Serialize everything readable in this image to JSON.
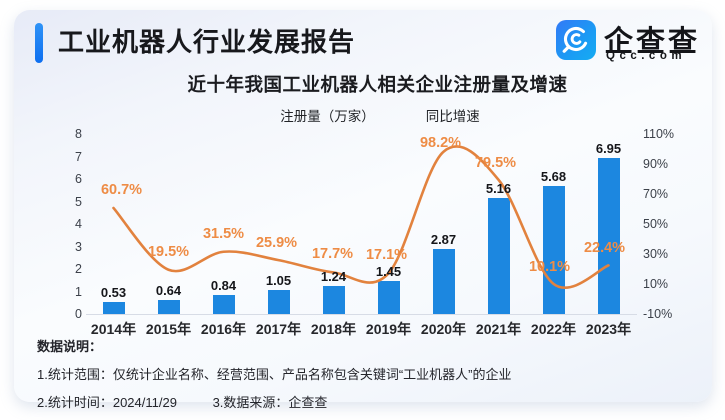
{
  "header": {
    "report_title": "工业机器人行业发展报告",
    "logo": {
      "brand": "企查查",
      "domain": "Qcc.com"
    }
  },
  "chart_data": {
    "type": "bar",
    "title": "近十年我国工业机器人相关企业注册量及增速",
    "categories": [
      "2014年",
      "2015年",
      "2016年",
      "2017年",
      "2018年",
      "2019年",
      "2020年",
      "2021年",
      "2022年",
      "2023年"
    ],
    "series": [
      {
        "name": "注册量（万家）",
        "type": "bar",
        "axis": "left",
        "color": "#1C87E0",
        "values": [
          0.53,
          0.64,
          0.84,
          1.05,
          1.24,
          1.45,
          2.87,
          5.16,
          5.68,
          6.95
        ]
      },
      {
        "name": "同比增速",
        "type": "line",
        "axis": "right",
        "color": "#E2823E",
        "unit": "%",
        "values": [
          60.7,
          19.5,
          31.5,
          25.9,
          17.7,
          17.1,
          98.2,
          79.5,
          10.1,
          22.4
        ]
      }
    ],
    "left_axis": {
      "min": 0,
      "max": 8,
      "step": 1
    },
    "right_axis": {
      "min": -10,
      "max": 110,
      "step": 20,
      "unit": "%"
    },
    "legend_position": "top",
    "grid": false,
    "label_color": "#EE8C45"
  },
  "footer": {
    "heading": "数据说明：",
    "note1": "1.统计范围：仅统计企业名称、经营范围、产品名称包含关键词“工业机器人”的企业",
    "note2": "2.统计时间：2024/11/29",
    "note3": "3.数据来源：企查查"
  }
}
